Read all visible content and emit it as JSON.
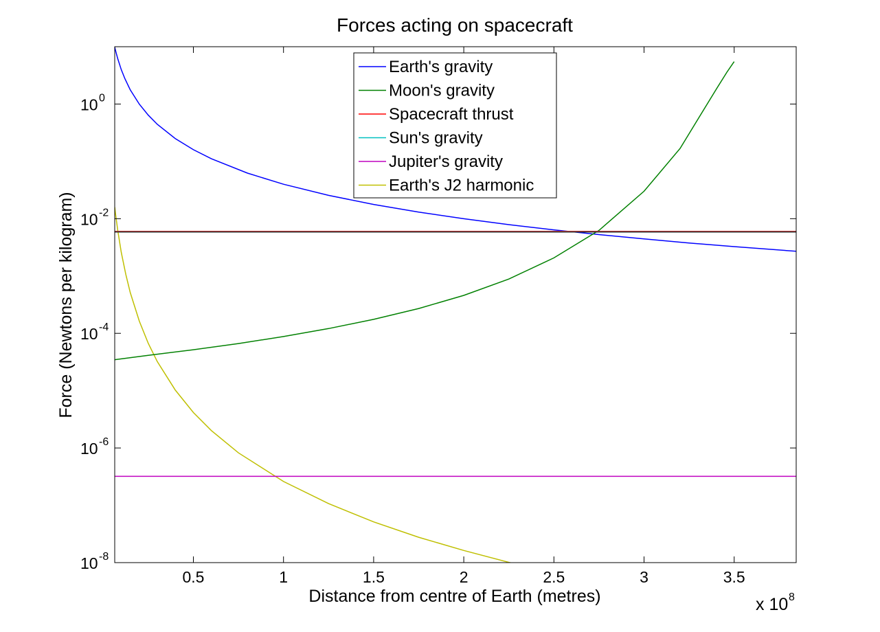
{
  "chart_data": {
    "type": "line",
    "title": "Forces acting on spacecraft",
    "xlabel": "Distance from centre of Earth (metres)",
    "ylabel": "Force (Newtons per kilogram)",
    "x_multiplier_base": "x 10",
    "x_multiplier_exp": "8",
    "y_scale": "log",
    "xlim": [
      0.0637,
      3.844
    ],
    "ylim": [
      1e-08,
      10
    ],
    "x_ticks": [
      {
        "value": 0.5,
        "label": "0.5"
      },
      {
        "value": 1,
        "label": "1"
      },
      {
        "value": 1.5,
        "label": "1.5"
      },
      {
        "value": 2,
        "label": "2"
      },
      {
        "value": 2.5,
        "label": "2.5"
      },
      {
        "value": 3,
        "label": "3"
      },
      {
        "value": 3.5,
        "label": "3.5"
      }
    ],
    "y_ticks": [
      {
        "value": 1,
        "base": "10",
        "exp": "0"
      },
      {
        "value": 0.01,
        "base": "10",
        "exp": "-2"
      },
      {
        "value": 0.0001,
        "base": "10",
        "exp": "-4"
      },
      {
        "value": 1e-06,
        "base": "10",
        "exp": "-6"
      },
      {
        "value": 1e-08,
        "base": "10",
        "exp": "-8"
      }
    ],
    "grid": false,
    "legend_position": "top-center",
    "series": [
      {
        "name": "Earth's gravity",
        "color": "#0000ff",
        "points": [
          [
            0.0637,
            9.8
          ],
          [
            0.07,
            8.13
          ],
          [
            0.08,
            6.23
          ],
          [
            0.1,
            3.99
          ],
          [
            0.12,
            2.77
          ],
          [
            0.15,
            1.77
          ],
          [
            0.2,
            0.997
          ],
          [
            0.25,
            0.638
          ],
          [
            0.3,
            0.443
          ],
          [
            0.4,
            0.249
          ],
          [
            0.5,
            0.16
          ],
          [
            0.6,
            0.111
          ],
          [
            0.8,
            0.0623
          ],
          [
            1.0,
            0.0399
          ],
          [
            1.25,
            0.0255
          ],
          [
            1.5,
            0.0177
          ],
          [
            1.75,
            0.013
          ],
          [
            2.0,
            0.00997
          ],
          [
            2.25,
            0.00788
          ],
          [
            2.5,
            0.00638
          ],
          [
            2.75,
            0.00527
          ],
          [
            3.0,
            0.00443
          ],
          [
            3.25,
            0.00377
          ],
          [
            3.5,
            0.00326
          ],
          [
            3.844,
            0.0027
          ]
        ]
      },
      {
        "name": "Moon's gravity",
        "color": "#008000",
        "points": [
          [
            0.0637,
            3.47e-05
          ],
          [
            0.25,
            4.13e-05
          ],
          [
            0.5,
            5.18e-05
          ],
          [
            0.75,
            6.64e-05
          ],
          [
            1.0,
            8.78e-05
          ],
          [
            1.25,
            0.000121
          ],
          [
            1.5,
            0.000175
          ],
          [
            1.75,
            0.000271
          ],
          [
            2.0,
            0.000459
          ],
          [
            2.25,
            0.000885
          ],
          [
            2.5,
            0.00207
          ],
          [
            2.75,
            0.00625
          ],
          [
            3.0,
            0.0301
          ],
          [
            3.2,
            0.168
          ],
          [
            3.3,
            0.55
          ],
          [
            3.4,
            1.8
          ],
          [
            3.46,
            3.6
          ],
          [
            3.5,
            5.5
          ]
        ]
      },
      {
        "name": "Spacecraft thrust",
        "color": "#ff0000",
        "points": [
          [
            0.0637,
            0.006
          ],
          [
            3.844,
            0.006
          ]
        ]
      },
      {
        "name": "Sun's gravity",
        "color": "#00bfbf",
        "points": [
          [
            0.0637,
            0.0059
          ],
          [
            3.844,
            0.0059
          ]
        ]
      },
      {
        "name": "Jupiter's gravity",
        "color": "#bf00bf",
        "points": [
          [
            0.0637,
            3.2e-07
          ],
          [
            3.844,
            3.2e-07
          ]
        ]
      },
      {
        "name": "Earth's J2 harmonic",
        "color": "#bfbf00",
        "points": [
          [
            0.0637,
            0.0159
          ],
          [
            0.07,
            0.0109
          ],
          [
            0.08,
            0.00636
          ],
          [
            0.1,
            0.0026
          ],
          [
            0.125,
            0.00107
          ],
          [
            0.15,
            0.000514
          ],
          [
            0.2,
            0.000163
          ],
          [
            0.25,
            6.66e-05
          ],
          [
            0.3,
            3.21e-05
          ],
          [
            0.4,
            1.02e-05
          ],
          [
            0.5,
            4.16e-06
          ],
          [
            0.6,
            2.01e-06
          ],
          [
            0.75,
            8.22e-07
          ],
          [
            1.0,
            2.6e-07
          ],
          [
            1.25,
            1.07e-07
          ],
          [
            1.5,
            5.14e-08
          ],
          [
            1.75,
            2.77e-08
          ],
          [
            2.0,
            1.63e-08
          ],
          [
            2.25,
            1.01e-08
          ],
          [
            2.3,
            9.3e-09
          ]
        ]
      }
    ]
  }
}
